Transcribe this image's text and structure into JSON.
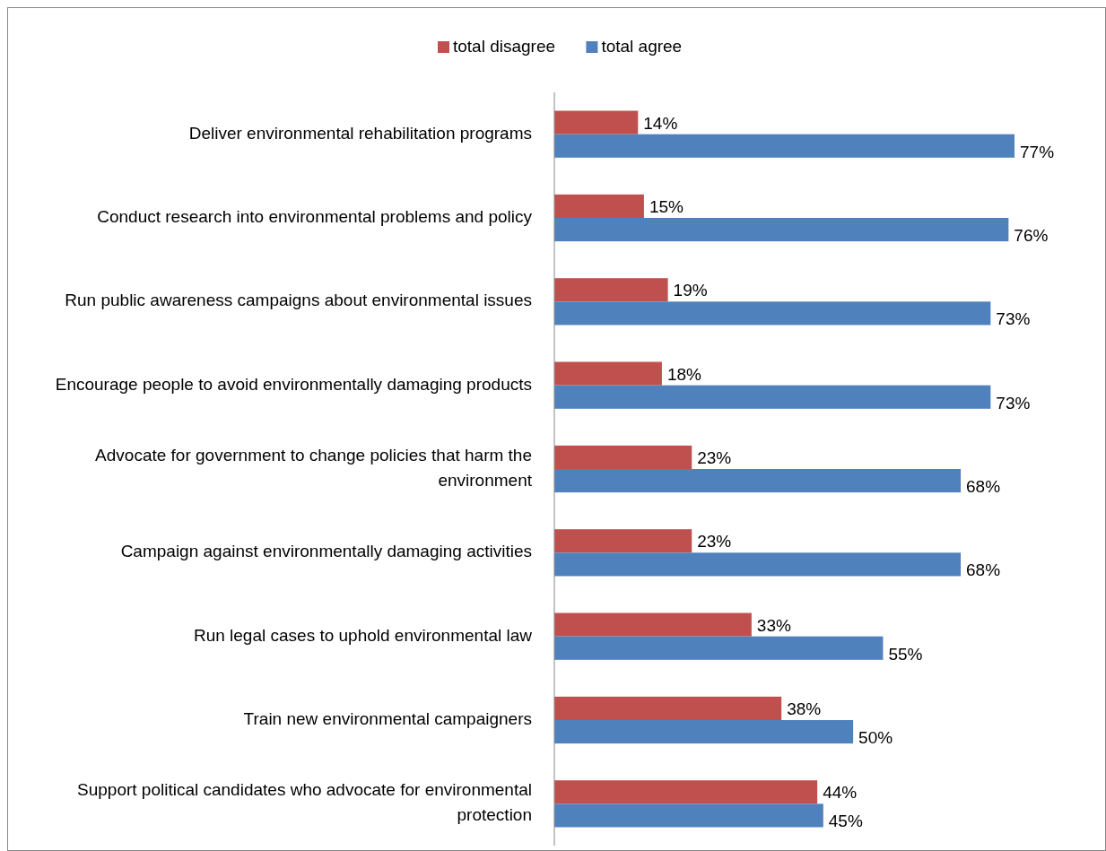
{
  "chart_data": {
    "type": "bar",
    "orientation": "horizontal",
    "relative": false,
    "legend": "top",
    "categories": [
      "Deliver environmental rehabilitation programs",
      "Conduct research into environmental problems and policy",
      "Run public awareness campaigns about environmental issues",
      "Encourage people to avoid environmentally damaging products",
      "Advocate for government to change policies that harm the environment",
      "Campaign against environmentally damaging activities",
      "Run legal cases to uphold environmental law",
      "Train new environmental campaigners",
      "Support political candidates who advocate for environmental protection"
    ],
    "series": [
      {
        "name": "total disagree",
        "color": "#c0504d",
        "values": [
          14,
          15,
          19,
          18,
          23,
          23,
          33,
          38,
          44
        ],
        "value_labels": [
          "14%",
          "15%",
          "19%",
          "18%",
          "23%",
          "23%",
          "33%",
          "38%",
          "44%"
        ]
      },
      {
        "name": "total agree",
        "color": "#4f81bd",
        "values": [
          77,
          76,
          73,
          73,
          68,
          68,
          55,
          50,
          45
        ],
        "value_labels": [
          "77%",
          "76%",
          "73%",
          "73%",
          "68%",
          "68%",
          "55%",
          "50%",
          "45%"
        ]
      }
    ]
  }
}
